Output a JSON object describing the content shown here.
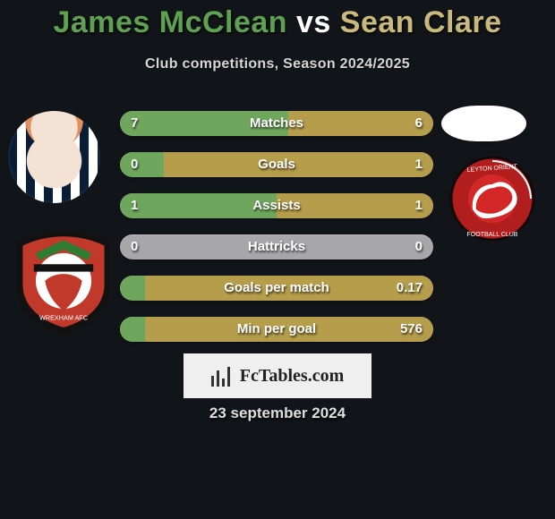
{
  "title": {
    "player1": "James McClean",
    "vs": " vs ",
    "player2": "Sean Clare"
  },
  "subtitle": "Club competitions, Season 2024/2025",
  "colors": {
    "left": "#6fa65d",
    "right": "#b59d4b",
    "neutral": "#a7a7aa"
  },
  "bars": [
    {
      "label": "Matches",
      "l": "7",
      "r": "6",
      "lw": 53.8,
      "rw": 46.2
    },
    {
      "label": "Goals",
      "l": "0",
      "r": "1",
      "lw": 14.0,
      "rw": 86.0
    },
    {
      "label": "Assists",
      "l": "1",
      "r": "1",
      "lw": 50.0,
      "rw": 50.0
    },
    {
      "label": "Hattricks",
      "l": "0",
      "r": "0",
      "lw": 0.0,
      "rw": 0.0
    },
    {
      "label": "Goals per match",
      "l": "",
      "r": "0.17",
      "lw": 8.0,
      "rw": 92.0
    },
    {
      "label": "Min per goal",
      "l": "",
      "r": "576",
      "lw": 8.0,
      "rw": 92.0
    }
  ],
  "footer_brand": "FcTables.com",
  "date": "23 september 2024"
}
